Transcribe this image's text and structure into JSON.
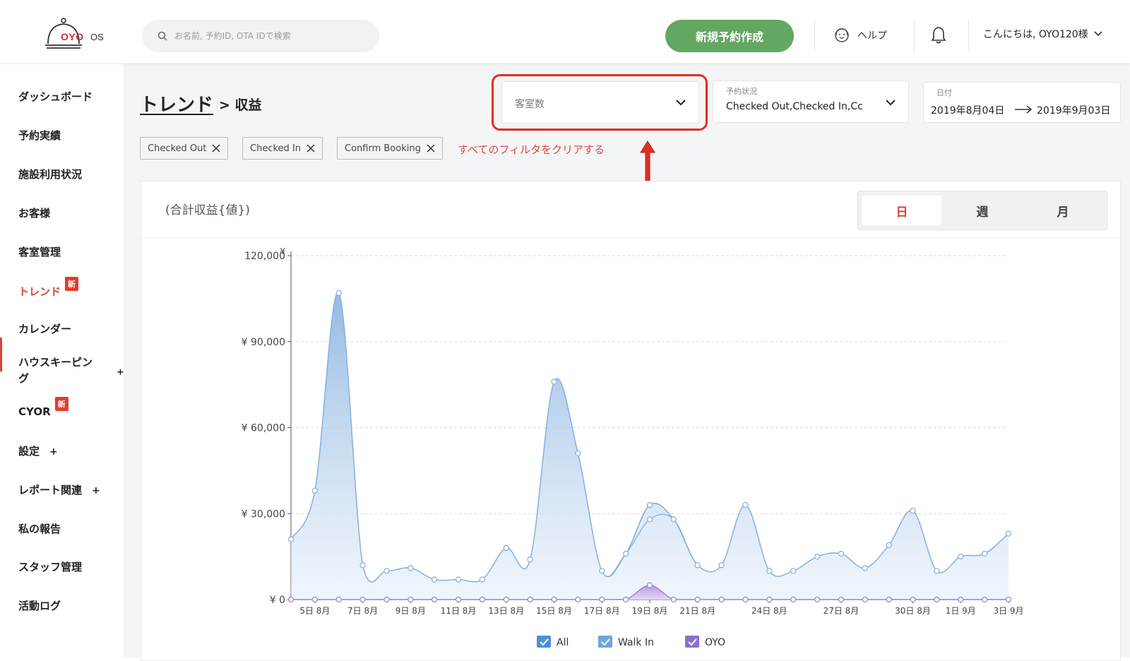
{
  "header": {
    "logo_text": "OYO",
    "logo_os": "OS",
    "search_placeholder": "お名前, 予約ID, OTA IDで検索",
    "new_booking_label": "新規予約作成",
    "help_label": "ヘルプ",
    "greeting": "こんにちは, OYO120様"
  },
  "sidebar": {
    "items": [
      {
        "label": "ダッシュボード"
      },
      {
        "label": "予約実績"
      },
      {
        "label": "施設利用状況"
      },
      {
        "label": "お客様"
      },
      {
        "label": "客室管理"
      },
      {
        "label": "トレンド",
        "badge": "新"
      },
      {
        "label": "カレンダー"
      },
      {
        "label": "ハウスキーピング",
        "line1": "ハウスキーピン",
        "line2": "グ",
        "plus": "+"
      },
      {
        "label": "CYOR",
        "badge": "新"
      },
      {
        "label": "設定",
        "plus": "+"
      },
      {
        "label": "レポート関連",
        "plus": "+"
      },
      {
        "label": "私の報告"
      },
      {
        "label": "スタッフ管理"
      },
      {
        "label": "活動ログ"
      }
    ]
  },
  "page": {
    "title": "トレンド",
    "subtitle": "> 収益",
    "metric_select_value": "客室数",
    "status_label": "予約状況",
    "status_value": "Checked Out,Checked In,Cc",
    "date_label": "日付",
    "date_from": "2019年8月04日",
    "date_to": "2019年9月03日",
    "chips": [
      "Checked Out",
      "Checked In",
      "Confirm Booking"
    ],
    "clear_filters": "すべてのフィルタをクリアする"
  },
  "card": {
    "title": "(合計収益{値})",
    "toggles": [
      "日",
      "週",
      "月"
    ],
    "active_toggle": "日"
  },
  "colors": {
    "accent_red": "#d9453b",
    "green_button": "#62a862",
    "series_all": "#7ba7d9",
    "series_oyo": "#9a7fd1"
  },
  "chart_data": {
    "type": "area",
    "y_unit_label": "¥",
    "ylim": [
      0,
      120000
    ],
    "y_ticks": [
      "¥ 0",
      "¥ 30,000",
      "¥ 60,000",
      "¥ 90,000",
      "120,000"
    ],
    "x_tick_labels": [
      "5日 8月",
      "7日 8月",
      "9日 8月",
      "11日 8月",
      "13日 8月",
      "15日 8月",
      "17日 8月",
      "19日 8月",
      "21日 8月",
      "24日 8月",
      "27日 8月",
      "30日 8月",
      "1日 9月",
      "3日 9月"
    ],
    "x": [
      "4日 8月",
      "5日 8月",
      "6日 8月",
      "7日 8月",
      "8日 8月",
      "9日 8月",
      "10日 8月",
      "11日 8月",
      "12日 8月",
      "13日 8月",
      "14日 8月",
      "15日 8月",
      "16日 8月",
      "17日 8月",
      "18日 8月",
      "19日 8月",
      "20日 8月",
      "21日 8月",
      "22日 8月",
      "23日 8月",
      "24日 8月",
      "25日 8月",
      "26日 8月",
      "27日 8月",
      "28日 8月",
      "29日 8月",
      "30日 8月",
      "31日 8月",
      "1日 9月",
      "2日 9月",
      "3日 9月"
    ],
    "series": [
      {
        "name": "All",
        "values": [
          21000,
          38000,
          107000,
          12000,
          10000,
          11000,
          7000,
          7000,
          7000,
          18000,
          14000,
          76000,
          51000,
          10000,
          16000,
          33000,
          28000,
          12000,
          12000,
          33000,
          10000,
          10000,
          15000,
          16000,
          11000,
          19000,
          31000,
          10000,
          15000,
          16000,
          23000
        ]
      },
      {
        "name": "Walk In",
        "values": [
          21000,
          38000,
          107000,
          12000,
          10000,
          11000,
          7000,
          7000,
          7000,
          18000,
          14000,
          76000,
          51000,
          10000,
          16000,
          28000,
          28000,
          12000,
          12000,
          33000,
          10000,
          10000,
          15000,
          16000,
          11000,
          19000,
          31000,
          10000,
          15000,
          16000,
          23000
        ]
      },
      {
        "name": "OYO",
        "values": [
          0,
          0,
          0,
          0,
          0,
          0,
          0,
          0,
          0,
          0,
          0,
          0,
          0,
          0,
          0,
          5000,
          0,
          0,
          0,
          0,
          0,
          0,
          0,
          0,
          0,
          0,
          0,
          0,
          0,
          0,
          0
        ]
      }
    ]
  }
}
